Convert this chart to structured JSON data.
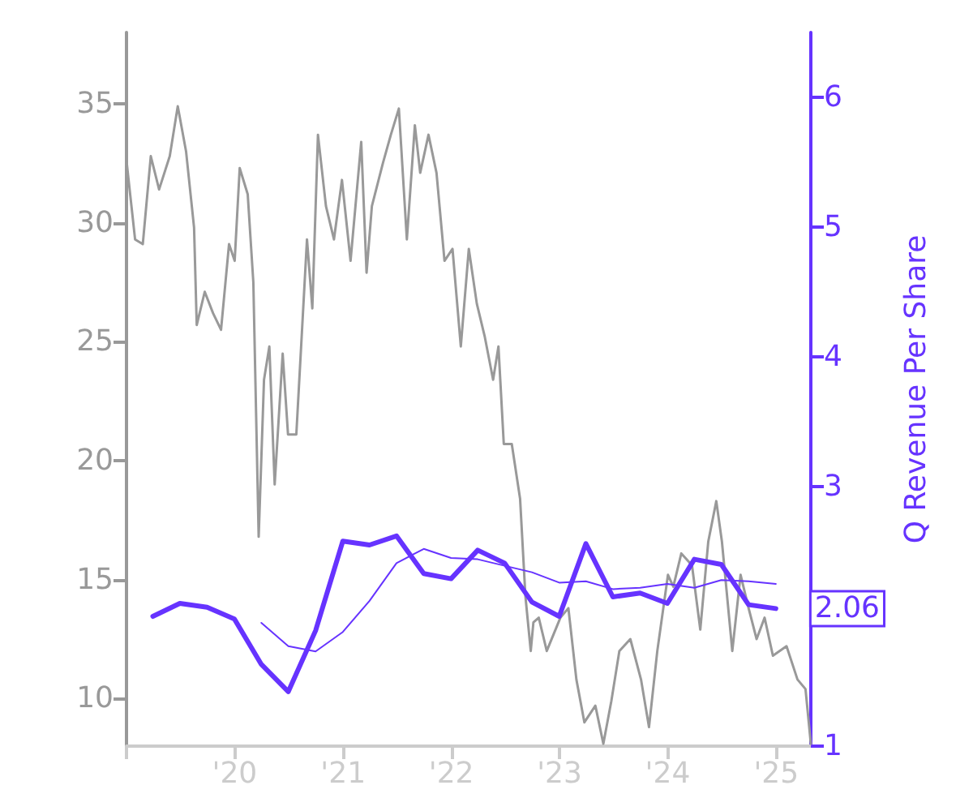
{
  "chart_data": {
    "type": "line",
    "y2label": "Q Revenue Per Share",
    "xlim": [
      "2019-01-01",
      "2025-04-28"
    ],
    "xticks": [
      {
        "value": "2019-01-01",
        "label": null
      },
      {
        "value": "2020-01-01",
        "label": "'20"
      },
      {
        "value": "2021-01-01",
        "label": "'21"
      },
      {
        "value": "2022-01-01",
        "label": "'22"
      },
      {
        "value": "2023-01-01",
        "label": "'23"
      },
      {
        "value": "2024-01-01",
        "label": "'24"
      },
      {
        "value": "2025-01-01",
        "label": "'25"
      }
    ],
    "ylim": [
      8,
      38
    ],
    "yticks": [
      10,
      15,
      20,
      25,
      30,
      35
    ],
    "y2lim": [
      1,
      6.5
    ],
    "y2ticks": [
      1,
      3,
      4,
      5,
      6
    ],
    "grid": false,
    "marker": "none",
    "line_style": "solid",
    "series": [
      {
        "color": "#999999",
        "x": [
          "2019-01-02",
          "2019-01-30",
          "2019-02-25",
          "2019-03-24",
          "2019-04-21",
          "2019-05-27",
          "2019-06-23",
          "2019-07-21",
          "2019-08-17",
          "2019-08-26",
          "2019-09-22",
          "2019-10-20",
          "2019-11-16",
          "2019-12-13",
          "2020-01-01",
          "2020-01-18",
          "2020-02-14",
          "2020-03-04",
          "2020-03-22",
          "2020-04-09",
          "2020-04-27",
          "2020-05-15",
          "2020-06-11",
          "2020-06-29",
          "2020-07-27",
          "2020-08-14",
          "2020-09-01",
          "2020-09-19",
          "2020-10-08",
          "2020-11-04",
          "2020-12-01",
          "2020-12-28",
          "2021-01-26",
          "2021-03-03",
          "2021-03-21",
          "2021-04-08",
          "2021-05-15",
          "2021-06-11",
          "2021-07-08",
          "2021-08-04",
          "2021-08-31",
          "2021-09-18",
          "2021-10-16",
          "2021-11-12",
          "2021-12-09",
          "2022-01-05",
          "2022-02-02",
          "2022-03-01",
          "2022-03-28",
          "2022-04-24",
          "2022-05-22",
          "2022-06-09",
          "2022-06-27",
          "2022-07-24",
          "2022-08-21",
          "2022-09-08",
          "2022-09-26",
          "2022-10-05",
          "2022-10-23",
          "2022-11-19",
          "2023-01-04",
          "2023-01-31",
          "2023-02-27",
          "2023-03-26",
          "2023-05-02",
          "2023-05-29",
          "2023-06-25",
          "2023-07-22",
          "2023-08-28",
          "2023-10-03",
          "2023-10-30",
          "2023-11-27",
          "2024-01-02",
          "2024-01-20",
          "2024-02-16",
          "2024-03-23",
          "2024-04-20",
          "2024-05-17",
          "2024-06-13",
          "2024-07-02",
          "2024-08-06",
          "2024-09-03",
          "2024-09-30",
          "2024-10-27",
          "2024-11-23",
          "2024-12-21",
          "2025-02-05",
          "2025-03-14",
          "2025-04-10",
          "2025-04-28"
        ],
        "values": [
          32.5,
          29.3,
          29.1,
          32.8,
          31.4,
          32.8,
          34.9,
          33.0,
          29.8,
          25.7,
          27.1,
          26.2,
          25.5,
          29.1,
          28.4,
          32.3,
          31.2,
          27.5,
          16.8,
          23.4,
          24.8,
          19.0,
          24.5,
          21.1,
          21.1,
          25.2,
          29.3,
          26.4,
          33.7,
          30.7,
          29.3,
          31.8,
          28.4,
          33.4,
          27.9,
          30.7,
          32.5,
          33.7,
          34.8,
          29.3,
          34.1,
          32.1,
          33.7,
          32.1,
          28.4,
          28.9,
          24.8,
          28.9,
          26.6,
          25.2,
          23.4,
          24.8,
          20.7,
          20.7,
          18.4,
          14.3,
          12.0,
          13.2,
          13.4,
          12.0,
          13.4,
          13.8,
          10.8,
          9.0,
          9.7,
          8.1,
          9.9,
          12.0,
          12.5,
          10.8,
          8.8,
          12.0,
          15.2,
          14.7,
          16.1,
          15.6,
          12.9,
          16.6,
          18.3,
          16.6,
          12.0,
          15.2,
          13.8,
          12.5,
          13.4,
          11.8,
          12.2,
          10.8,
          10.4,
          8.1
        ]
      },
      {
        "axis": "y2",
        "color": "#6633ff",
        "x": [
          "2020-03-31",
          "2020-06-30",
          "2020-09-30",
          "2020-12-31",
          "2021-03-31",
          "2021-06-30",
          "2021-09-30",
          "2021-12-31",
          "2022-03-31",
          "2022-06-30",
          "2022-09-30",
          "2022-12-31",
          "2023-03-31",
          "2023-06-30",
          "2023-09-30",
          "2023-12-31",
          "2024-03-31",
          "2024-06-30",
          "2024-09-30",
          "2024-12-31"
        ],
        "values": [
          1.95,
          1.77,
          1.73,
          1.88,
          2.12,
          2.41,
          2.52,
          2.45,
          2.44,
          2.39,
          2.34,
          2.26,
          2.27,
          2.21,
          2.22,
          2.25,
          2.22,
          2.28,
          2.27,
          2.25
        ]
      },
      {
        "axis": "y2",
        "color": "#6633ff",
        "x": [
          "2019-03-31",
          "2019-06-30",
          "2019-09-30",
          "2019-12-31",
          "2020-03-31",
          "2020-06-30",
          "2020-09-30",
          "2020-12-31",
          "2021-03-31",
          "2021-06-30",
          "2021-09-30",
          "2021-12-31",
          "2022-03-31",
          "2022-06-30",
          "2022-09-30",
          "2022-12-31",
          "2023-03-31",
          "2023-06-30",
          "2023-09-30",
          "2023-12-31",
          "2024-03-31",
          "2024-06-30",
          "2024-09-30",
          "2024-12-31"
        ],
        "values": [
          2.0,
          2.1,
          2.07,
          1.98,
          1.63,
          1.42,
          1.89,
          2.58,
          2.55,
          2.62,
          2.33,
          2.29,
          2.51,
          2.41,
          2.11,
          2.0,
          2.56,
          2.15,
          2.18,
          2.1,
          2.44,
          2.4,
          2.09,
          2.06
        ],
        "value_labels": [
          null,
          null,
          null,
          null,
          null,
          null,
          null,
          null,
          null,
          null,
          null,
          null,
          null,
          null,
          null,
          null,
          null,
          null,
          null,
          null,
          null,
          null,
          null,
          "2.06"
        ]
      }
    ]
  }
}
